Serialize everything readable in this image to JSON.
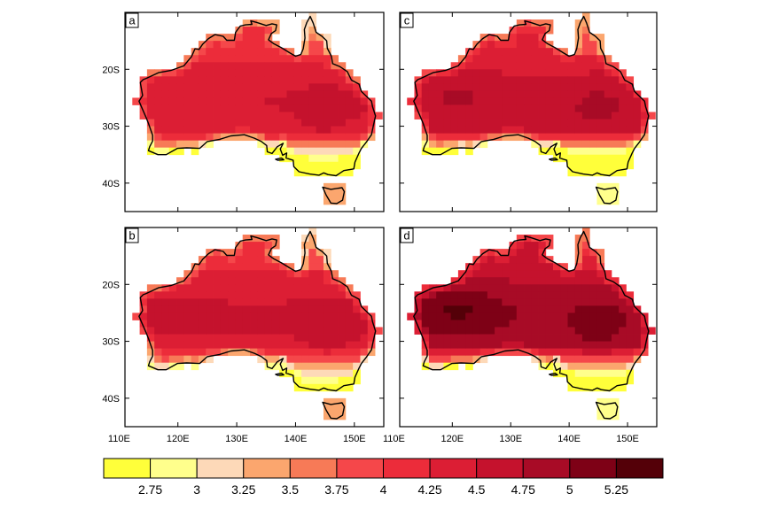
{
  "figure": {
    "panels": [
      {
        "id": "a",
        "label": "a",
        "shift": 0.0,
        "cool_south": 0.9,
        "hot_west": 0.0
      },
      {
        "id": "c",
        "label": "c",
        "shift": 0.15,
        "cool_south": 1.2,
        "hot_west": 0.3
      },
      {
        "id": "b",
        "label": "b",
        "shift": 0.05,
        "cool_south": 0.7,
        "hot_west": 0.1
      },
      {
        "id": "d",
        "label": "d",
        "shift": 0.45,
        "cool_south": 1.1,
        "hot_west": 0.8
      }
    ],
    "lat_ticks": [
      {
        "value": -20,
        "label": "20S"
      },
      {
        "value": -30,
        "label": "30S"
      },
      {
        "value": -40,
        "label": "40S"
      }
    ],
    "lon_ticks": [
      {
        "value": 110,
        "label": "110E"
      },
      {
        "value": 120,
        "label": "120E"
      },
      {
        "value": 130,
        "label": "130E"
      },
      {
        "value": 140,
        "label": "140E"
      },
      {
        "value": 150,
        "label": "150E"
      }
    ],
    "lon_range": [
      111,
      155
    ],
    "lat_range": [
      -45,
      -10
    ]
  },
  "colorbar": {
    "colors": [
      "#ffff3a",
      "#ffff8c",
      "#fdd9b8",
      "#fba66e",
      "#f77a57",
      "#f5474a",
      "#ec2c3a",
      "#dc1e34",
      "#c5122d",
      "#a80b26",
      "#7e0116",
      "#540008"
    ],
    "labels": [
      "2.75",
      "3",
      "3.25",
      "3.5",
      "3.75",
      "4",
      "4.25",
      "4.5",
      "4.75",
      "5",
      "5.25"
    ],
    "levels": [
      2.75,
      3,
      3.25,
      3.5,
      3.75,
      4,
      4.25,
      4.5,
      4.75,
      5,
      5.25
    ]
  }
}
